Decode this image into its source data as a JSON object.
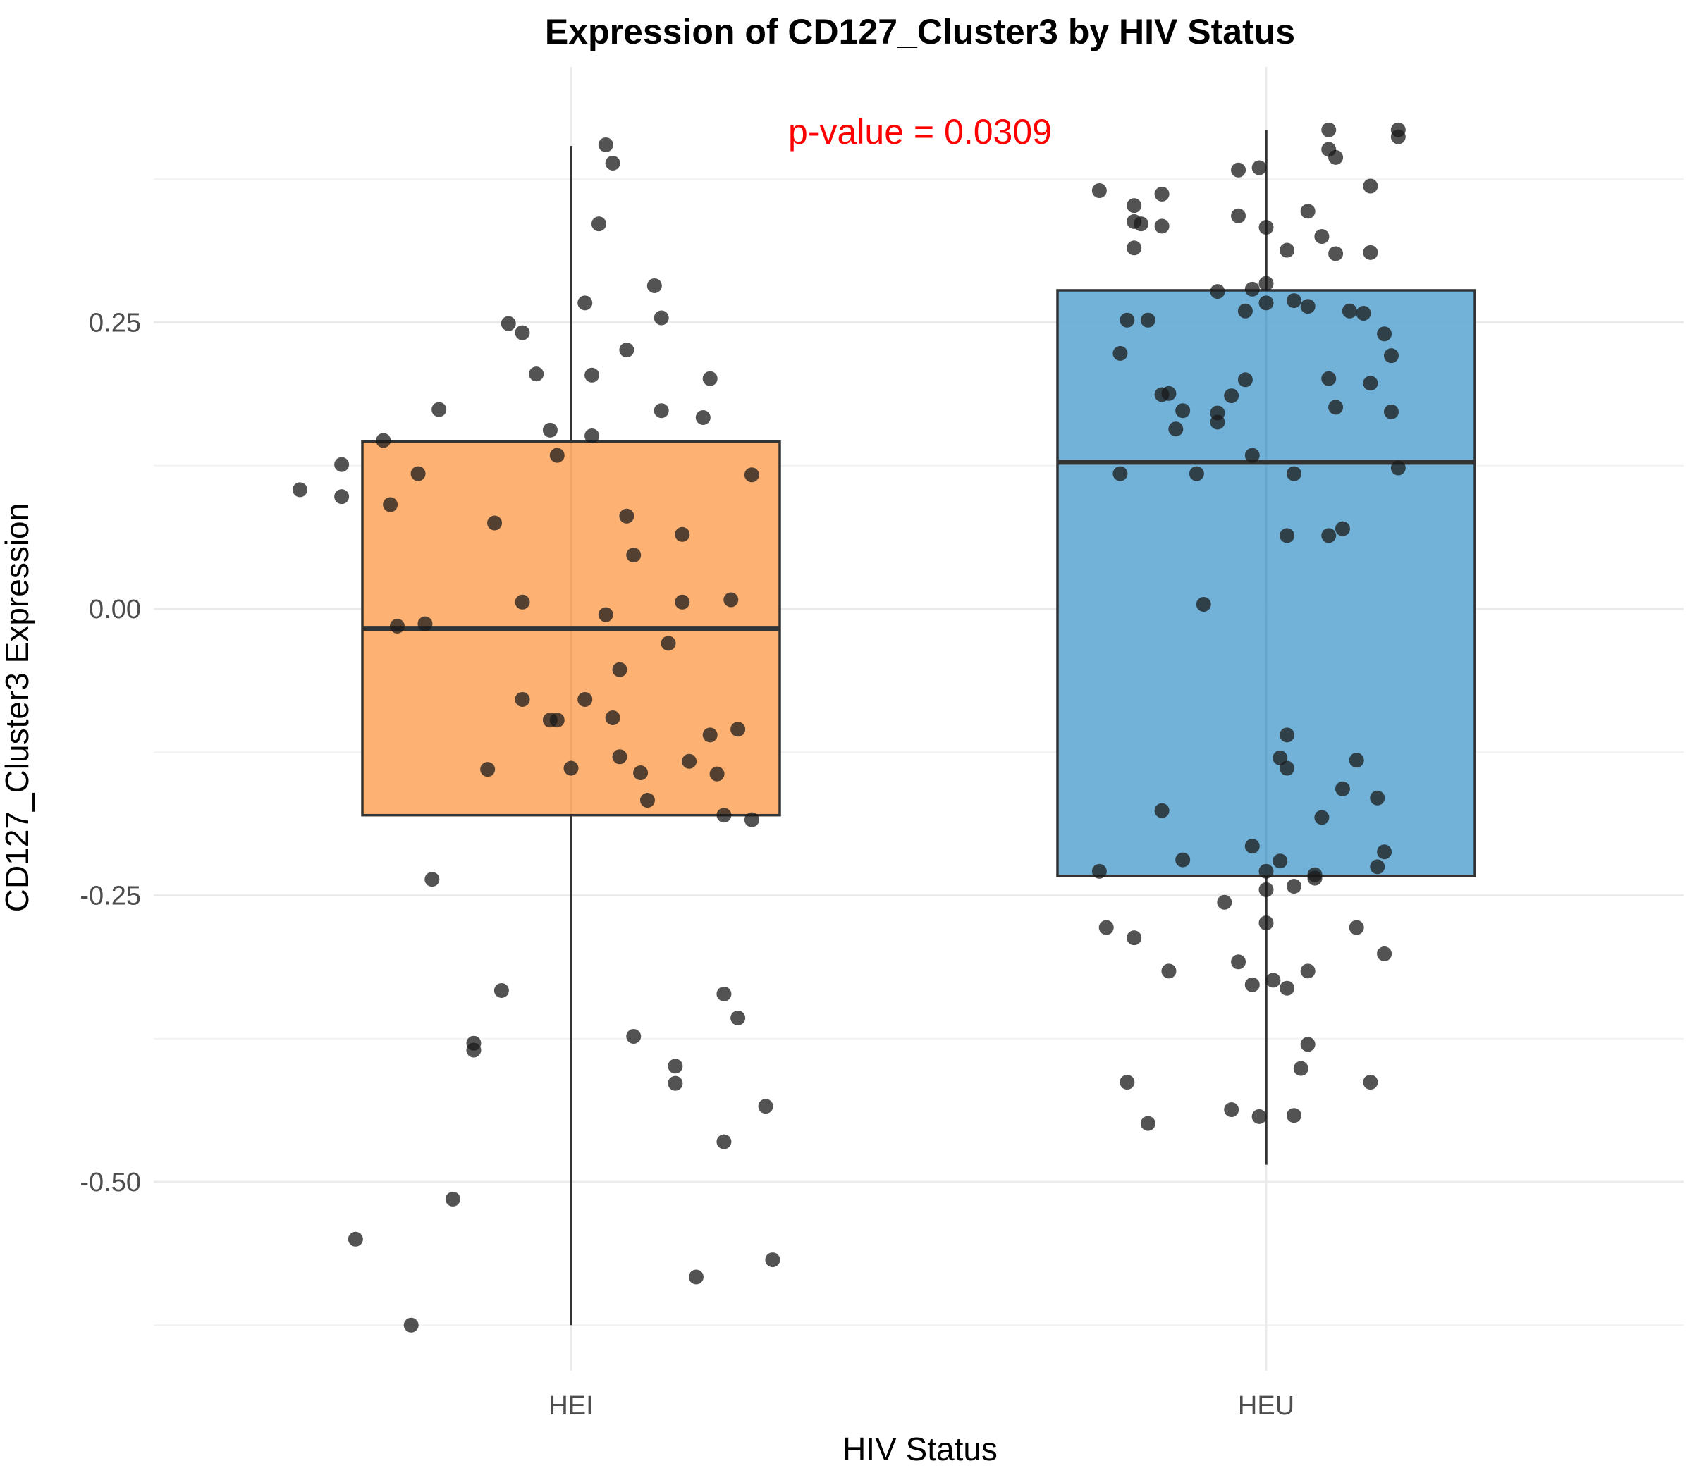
{
  "chart_data": {
    "type": "box",
    "title": "Expression of CD127_Cluster3 by HIV Status",
    "xlabel": "HIV Status",
    "ylabel": "CD127_Cluster3 Expression",
    "ylim": [
      -0.67,
      0.47
    ],
    "yticks": [
      -0.5,
      -0.25,
      0.0,
      0.25
    ],
    "ytick_labels": [
      "-0.50",
      "-0.25",
      "0.00",
      "0.25"
    ],
    "grid": true,
    "annotation": {
      "text": "p-value = 0.0309",
      "color": "#ff0000"
    },
    "point_color": "#1a1a1a",
    "groups": [
      {
        "name": "HEI",
        "color": "#fdae6b",
        "q1": -0.18,
        "median": -0.017,
        "q3": 0.146,
        "whisker_low": -0.625,
        "whisker_high": 0.404,
        "points": [
          {
            "dx": -0.39,
            "y": 0.104
          },
          {
            "dx": -0.33,
            "y": 0.126
          },
          {
            "dx": -0.31,
            "y": -0.55
          },
          {
            "dx": -0.27,
            "y": 0.147
          },
          {
            "dx": -0.23,
            "y": -0.625
          },
          {
            "dx": -0.33,
            "y": 0.098
          },
          {
            "dx": -0.26,
            "y": 0.091
          },
          {
            "dx": -0.25,
            "y": -0.015
          },
          {
            "dx": -0.22,
            "y": 0.118
          },
          {
            "dx": -0.21,
            "y": -0.013
          },
          {
            "dx": -0.2,
            "y": -0.236
          },
          {
            "dx": -0.19,
            "y": 0.174
          },
          {
            "dx": -0.17,
            "y": -0.515
          },
          {
            "dx": -0.14,
            "y": -0.379
          },
          {
            "dx": -0.14,
            "y": -0.385
          },
          {
            "dx": -0.12,
            "y": -0.14
          },
          {
            "dx": -0.11,
            "y": 0.075
          },
          {
            "dx": -0.1,
            "y": -0.333
          },
          {
            "dx": -0.09,
            "y": 0.249
          },
          {
            "dx": -0.07,
            "y": 0.241
          },
          {
            "dx": -0.07,
            "y": -0.079
          },
          {
            "dx": -0.07,
            "y": 0.006
          },
          {
            "dx": -0.05,
            "y": 0.205
          },
          {
            "dx": -0.03,
            "y": 0.156
          },
          {
            "dx": -0.03,
            "y": -0.097
          },
          {
            "dx": -0.02,
            "y": -0.097
          },
          {
            "dx": -0.02,
            "y": 0.134
          },
          {
            "dx": 0.0,
            "y": -0.139
          },
          {
            "dx": 0.02,
            "y": 0.267
          },
          {
            "dx": 0.02,
            "y": -0.079
          },
          {
            "dx": 0.03,
            "y": 0.151
          },
          {
            "dx": 0.03,
            "y": 0.204
          },
          {
            "dx": 0.04,
            "y": 0.336
          },
          {
            "dx": 0.05,
            "y": -0.005
          },
          {
            "dx": 0.05,
            "y": 0.405
          },
          {
            "dx": 0.06,
            "y": 0.389
          },
          {
            "dx": 0.06,
            "y": -0.095
          },
          {
            "dx": 0.07,
            "y": -0.129
          },
          {
            "dx": 0.07,
            "y": -0.053
          },
          {
            "dx": 0.08,
            "y": 0.226
          },
          {
            "dx": 0.08,
            "y": 0.081
          },
          {
            "dx": 0.09,
            "y": -0.373
          },
          {
            "dx": 0.09,
            "y": 0.047
          },
          {
            "dx": 0.1,
            "y": -0.143
          },
          {
            "dx": 0.11,
            "y": -0.167
          },
          {
            "dx": 0.12,
            "y": 0.282
          },
          {
            "dx": 0.13,
            "y": 0.173
          },
          {
            "dx": 0.13,
            "y": 0.254
          },
          {
            "dx": 0.14,
            "y": -0.03
          },
          {
            "dx": 0.15,
            "y": -0.399
          },
          {
            "dx": 0.15,
            "y": -0.414
          },
          {
            "dx": 0.16,
            "y": 0.065
          },
          {
            "dx": 0.16,
            "y": 0.006
          },
          {
            "dx": 0.17,
            "y": -0.133
          },
          {
            "dx": 0.18,
            "y": -0.583
          },
          {
            "dx": 0.19,
            "y": 0.167
          },
          {
            "dx": 0.2,
            "y": 0.201
          },
          {
            "dx": 0.2,
            "y": -0.11
          },
          {
            "dx": 0.21,
            "y": -0.144
          },
          {
            "dx": 0.22,
            "y": -0.336
          },
          {
            "dx": 0.22,
            "y": -0.465
          },
          {
            "dx": 0.22,
            "y": -0.18
          },
          {
            "dx": 0.23,
            "y": 0.008
          },
          {
            "dx": 0.24,
            "y": -0.357
          },
          {
            "dx": 0.24,
            "y": -0.105
          },
          {
            "dx": 0.26,
            "y": 0.117
          },
          {
            "dx": 0.26,
            "y": -0.184
          },
          {
            "dx": 0.28,
            "y": -0.434
          },
          {
            "dx": 0.29,
            "y": -0.568
          }
        ]
      },
      {
        "name": "HEU",
        "color": "#6baed6",
        "q1": -0.233,
        "median": 0.128,
        "q3": 0.278,
        "whisker_low": -0.485,
        "whisker_high": 0.418,
        "points": [
          {
            "dx": -0.24,
            "y": 0.365
          },
          {
            "dx": -0.24,
            "y": -0.229
          },
          {
            "dx": -0.23,
            "y": -0.278
          },
          {
            "dx": -0.21,
            "y": 0.223
          },
          {
            "dx": -0.21,
            "y": 0.118
          },
          {
            "dx": -0.2,
            "y": 0.252
          },
          {
            "dx": -0.2,
            "y": -0.413
          },
          {
            "dx": -0.19,
            "y": 0.352
          },
          {
            "dx": -0.19,
            "y": 0.338
          },
          {
            "dx": -0.19,
            "y": 0.315
          },
          {
            "dx": -0.19,
            "y": -0.287
          },
          {
            "dx": -0.18,
            "y": 0.336
          },
          {
            "dx": -0.17,
            "y": -0.449
          },
          {
            "dx": -0.17,
            "y": 0.252
          },
          {
            "dx": -0.15,
            "y": 0.362
          },
          {
            "dx": -0.15,
            "y": 0.187
          },
          {
            "dx": -0.15,
            "y": 0.334
          },
          {
            "dx": -0.15,
            "y": -0.176
          },
          {
            "dx": -0.14,
            "y": -0.316
          },
          {
            "dx": -0.14,
            "y": 0.188
          },
          {
            "dx": -0.13,
            "y": 0.157
          },
          {
            "dx": -0.12,
            "y": 0.173
          },
          {
            "dx": -0.12,
            "y": -0.219
          },
          {
            "dx": -0.1,
            "y": 0.118
          },
          {
            "dx": -0.09,
            "y": 0.004
          },
          {
            "dx": -0.07,
            "y": 0.171
          },
          {
            "dx": -0.07,
            "y": 0.163
          },
          {
            "dx": -0.07,
            "y": 0.277
          },
          {
            "dx": -0.06,
            "y": -0.256
          },
          {
            "dx": -0.05,
            "y": 0.186
          },
          {
            "dx": -0.05,
            "y": -0.437
          },
          {
            "dx": -0.04,
            "y": 0.383
          },
          {
            "dx": -0.04,
            "y": 0.343
          },
          {
            "dx": -0.04,
            "y": -0.308
          },
          {
            "dx": -0.03,
            "y": 0.2
          },
          {
            "dx": -0.03,
            "y": 0.26
          },
          {
            "dx": -0.02,
            "y": 0.134
          },
          {
            "dx": -0.02,
            "y": -0.328
          },
          {
            "dx": -0.02,
            "y": -0.207
          },
          {
            "dx": -0.02,
            "y": 0.279
          },
          {
            "dx": -0.01,
            "y": 0.385
          },
          {
            "dx": -0.01,
            "y": -0.443
          },
          {
            "dx": 0.0,
            "y": 0.284
          },
          {
            "dx": 0.0,
            "y": 0.267
          },
          {
            "dx": 0.0,
            "y": 0.333
          },
          {
            "dx": 0.0,
            "y": -0.274
          },
          {
            "dx": 0.0,
            "y": -0.245
          },
          {
            "dx": 0.0,
            "y": -0.229
          },
          {
            "dx": 0.01,
            "y": -0.324
          },
          {
            "dx": 0.02,
            "y": -0.22
          },
          {
            "dx": 0.02,
            "y": -0.13
          },
          {
            "dx": 0.03,
            "y": -0.331
          },
          {
            "dx": 0.03,
            "y": 0.064
          },
          {
            "dx": 0.03,
            "y": -0.11
          },
          {
            "dx": 0.03,
            "y": 0.313
          },
          {
            "dx": 0.03,
            "y": -0.139
          },
          {
            "dx": 0.04,
            "y": 0.269
          },
          {
            "dx": 0.04,
            "y": 0.118
          },
          {
            "dx": 0.04,
            "y": -0.242
          },
          {
            "dx": 0.04,
            "y": -0.442
          },
          {
            "dx": 0.05,
            "y": -0.401
          },
          {
            "dx": 0.06,
            "y": -0.316
          },
          {
            "dx": 0.06,
            "y": -0.38
          },
          {
            "dx": 0.06,
            "y": 0.347
          },
          {
            "dx": 0.06,
            "y": 0.264
          },
          {
            "dx": 0.07,
            "y": -0.232
          },
          {
            "dx": 0.07,
            "y": -0.235
          },
          {
            "dx": 0.08,
            "y": 0.325
          },
          {
            "dx": 0.08,
            "y": -0.182
          },
          {
            "dx": 0.09,
            "y": 0.401
          },
          {
            "dx": 0.09,
            "y": 0.064
          },
          {
            "dx": 0.09,
            "y": 0.201
          },
          {
            "dx": 0.09,
            "y": 0.418
          },
          {
            "dx": 0.1,
            "y": 0.394
          },
          {
            "dx": 0.1,
            "y": 0.31
          },
          {
            "dx": 0.1,
            "y": 0.176
          },
          {
            "dx": 0.11,
            "y": 0.07
          },
          {
            "dx": 0.11,
            "y": -0.157
          },
          {
            "dx": 0.12,
            "y": 0.26
          },
          {
            "dx": 0.13,
            "y": -0.132
          },
          {
            "dx": 0.13,
            "y": -0.278
          },
          {
            "dx": 0.14,
            "y": 0.258
          },
          {
            "dx": 0.15,
            "y": 0.311
          },
          {
            "dx": 0.15,
            "y": 0.197
          },
          {
            "dx": 0.15,
            "y": 0.369
          },
          {
            "dx": 0.15,
            "y": -0.413
          },
          {
            "dx": 0.16,
            "y": -0.225
          },
          {
            "dx": 0.16,
            "y": -0.165
          },
          {
            "dx": 0.17,
            "y": -0.301
          },
          {
            "dx": 0.17,
            "y": -0.212
          },
          {
            "dx": 0.17,
            "y": 0.24
          },
          {
            "dx": 0.18,
            "y": 0.172
          },
          {
            "dx": 0.18,
            "y": 0.221
          },
          {
            "dx": 0.19,
            "y": 0.123
          },
          {
            "dx": 0.19,
            "y": 0.418
          },
          {
            "dx": 0.19,
            "y": 0.412
          }
        ]
      }
    ]
  }
}
